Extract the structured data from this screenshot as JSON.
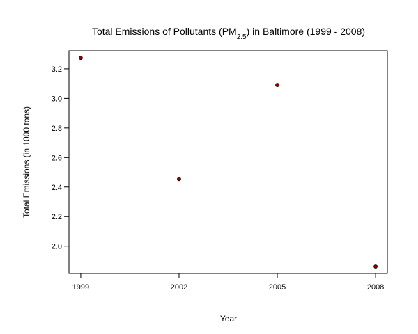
{
  "chart_data": {
    "type": "scatter",
    "title": {
      "prefix": "Total Emissions of Pollutants (PM",
      "subscript": "2.5",
      "suffix": ") in Baltimore (1999 - 2008)"
    },
    "xlabel": "Year",
    "ylabel": "Total Emissions (in 1000 tons)",
    "x": [
      1999,
      2002,
      2005,
      2008
    ],
    "y": [
      3.274,
      2.454,
      3.091,
      1.862
    ],
    "x_ticks": [
      "1999",
      "2002",
      "2005",
      "2008"
    ],
    "y_ticks": [
      "2.0",
      "2.2",
      "2.4",
      "2.6",
      "2.8",
      "3.0",
      "3.2"
    ],
    "xlim": [
      1998.64,
      2008.36
    ],
    "ylim": [
      1.815,
      3.322
    ],
    "grid": false,
    "point_color": "#8b0000",
    "point_outline": "#000000"
  }
}
